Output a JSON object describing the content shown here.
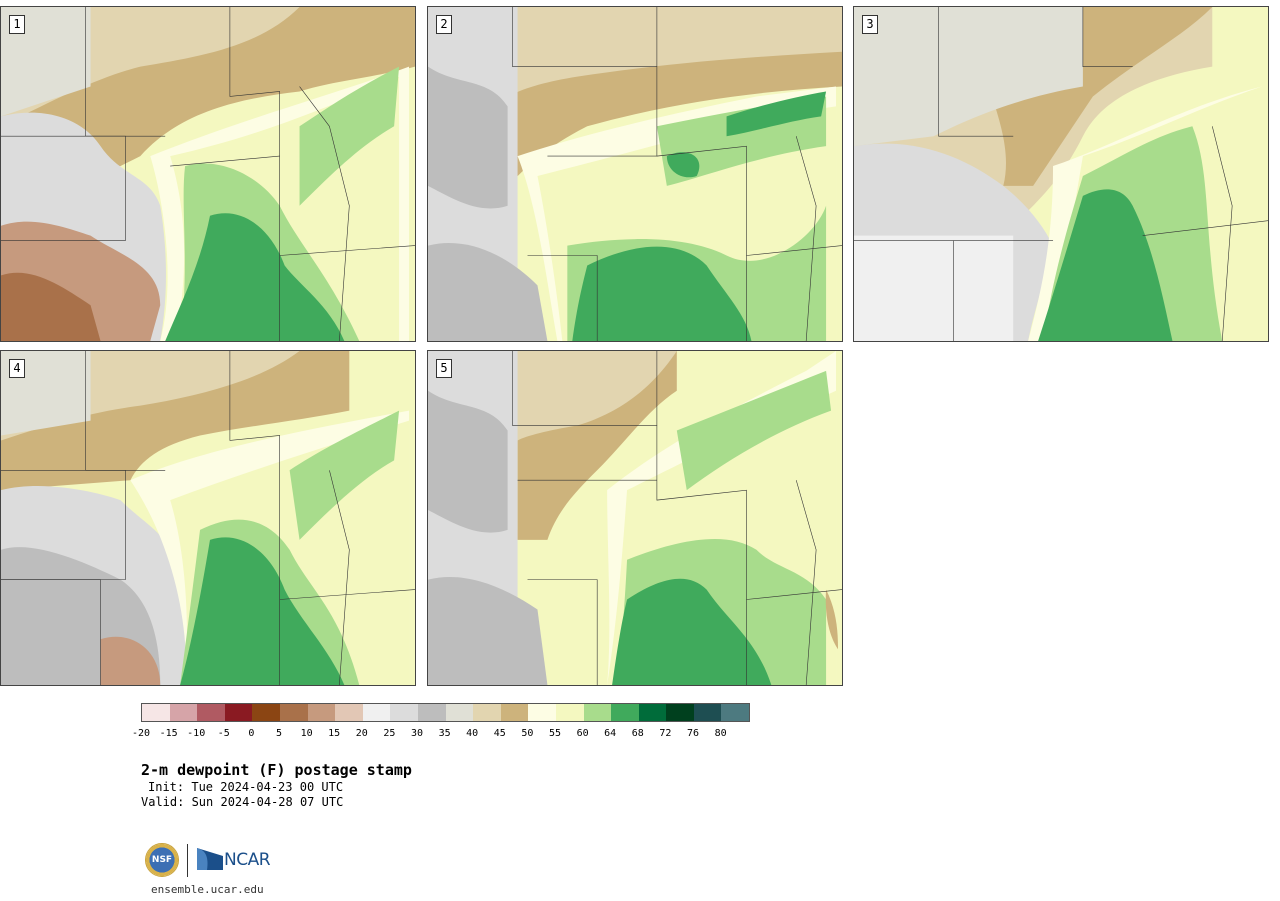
{
  "panels": [
    {
      "label": "1"
    },
    {
      "label": "2"
    },
    {
      "label": "3"
    },
    {
      "label": "4"
    },
    {
      "label": "5"
    }
  ],
  "colorbar": {
    "colors": [
      "#f6e6e6",
      "#d6a4a8",
      "#b05a62",
      "#8a1a22",
      "#8b4513",
      "#a9714a",
      "#c69a7e",
      "#e2c7b5",
      "#f0f0f0",
      "#dcdcdc",
      "#bdbdbd",
      "#e0e0d6",
      "#e2d5b0",
      "#cdb37c",
      "#fdfde4",
      "#f4f8c0",
      "#a8dc8c",
      "#40aa5c",
      "#006c3a",
      "#00401e",
      "#1e4e52",
      "#4d7a80"
    ],
    "ticks": [
      "-20",
      "-15",
      "-10",
      "-5",
      "0",
      "5",
      "10",
      "15",
      "20",
      "25",
      "30",
      "35",
      "40",
      "45",
      "50",
      "55",
      "60",
      "64",
      "68",
      "72",
      "76",
      "80"
    ]
  },
  "title": "2-m dewpoint (F) postage stamp",
  "init": "Init: Tue 2024-04-23 00 UTC",
  "valid": "Valid: Sun 2024-04-28 07 UTC",
  "logo": {
    "nsf": "NSF",
    "ncar": "NCAR"
  },
  "url": "ensemble.ucar.edu"
}
